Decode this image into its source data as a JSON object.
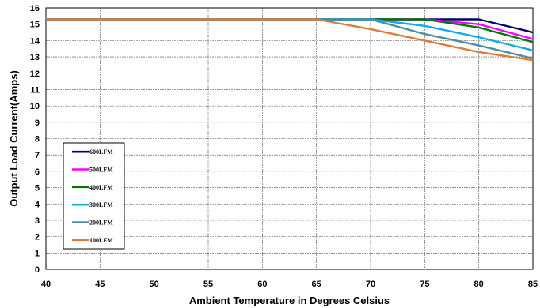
{
  "chart_data": {
    "type": "line",
    "title": "",
    "xlabel": "Ambient Temperature in Degrees Celsius",
    "ylabel": "Output  Load Current(Amps)",
    "xlim": [
      40,
      85
    ],
    "ylim": [
      0,
      16
    ],
    "xticks": [
      "40",
      "45",
      "50",
      "55",
      "60",
      "65",
      "70",
      "75",
      "80",
      "85"
    ],
    "yticks": [
      "0",
      "1",
      "2",
      "3",
      "4",
      "5",
      "6",
      "7",
      "8",
      "9",
      "10",
      "11",
      "12",
      "13",
      "14",
      "15",
      "16"
    ],
    "grid": true,
    "legend_position": "lower-left",
    "series": [
      {
        "name": "600LFM",
        "color": "#000066",
        "x": [
          40,
          65,
          70,
          75,
          80,
          85
        ],
        "y": [
          15.3,
          15.3,
          15.3,
          15.3,
          15.3,
          14.5
        ]
      },
      {
        "name": "500LFM",
        "color": "#ff00ff",
        "x": [
          40,
          65,
          70,
          75,
          80,
          85
        ],
        "y": [
          15.3,
          15.3,
          15.3,
          15.3,
          15.0,
          14.1
        ]
      },
      {
        "name": "400LFM",
        "color": "#007700",
        "x": [
          40,
          65,
          70,
          75,
          80,
          85
        ],
        "y": [
          15.3,
          15.3,
          15.3,
          15.3,
          14.8,
          13.9
        ]
      },
      {
        "name": "300LFM",
        "color": "#11aaee",
        "x": [
          40,
          65,
          70,
          75,
          80,
          85
        ],
        "y": [
          15.3,
          15.3,
          15.3,
          14.9,
          14.2,
          13.4
        ]
      },
      {
        "name": "200LFM",
        "color": "#4a90aa",
        "x": [
          40,
          65,
          70,
          75,
          80,
          85
        ],
        "y": [
          15.3,
          15.3,
          15.3,
          14.4,
          13.7,
          12.9
        ]
      },
      {
        "name": "100LFM",
        "color": "#e07c3a",
        "x": [
          40,
          65,
          70,
          75,
          80,
          85
        ],
        "y": [
          15.3,
          15.3,
          14.7,
          14.0,
          13.3,
          12.8
        ]
      }
    ]
  }
}
